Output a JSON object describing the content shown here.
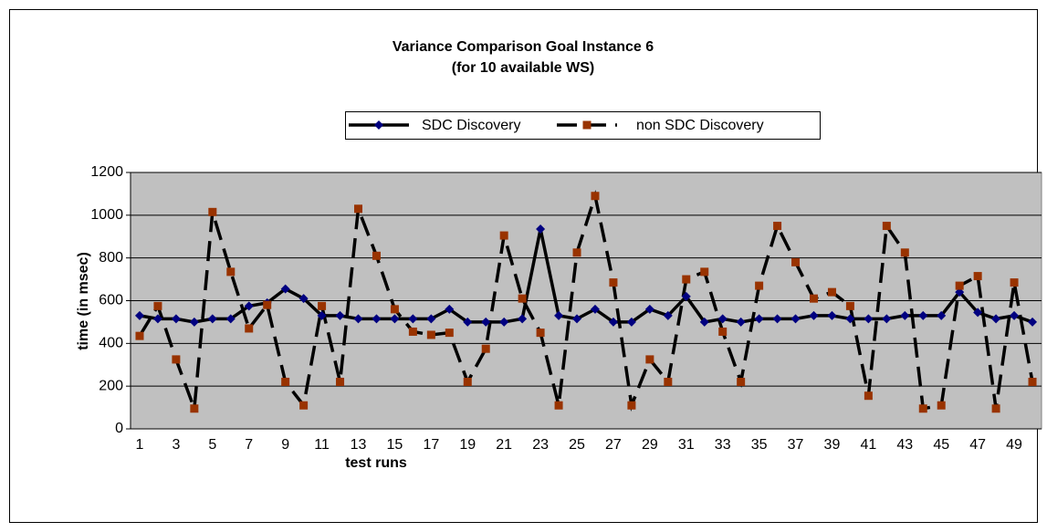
{
  "chart_data": {
    "type": "line",
    "title": "Variance Comparison Goal Instance 6",
    "subtitle": "(for 10 available WS)",
    "x_label": "test runs",
    "y_label": "time (in msec)",
    "categories": [
      "1",
      null,
      "3",
      null,
      "5",
      null,
      "7",
      null,
      "9",
      null,
      "11",
      null,
      "13",
      null,
      "15",
      null,
      "17",
      null,
      "19",
      null,
      "21",
      null,
      "23",
      null,
      "25",
      null,
      "27",
      null,
      "29",
      null,
      "31",
      null,
      "33",
      null,
      "35",
      null,
      "37",
      null,
      "39",
      null,
      "41",
      null,
      "43",
      null,
      "45",
      null,
      "47",
      null,
      "49",
      null
    ],
    "series": [
      {
        "name": "SDC Discovery",
        "color": "#000000",
        "marker_color": "#000080",
        "dash": "solid",
        "marker": "diamond",
        "values": [
          530,
          515,
          515,
          500,
          515,
          515,
          575,
          590,
          655,
          610,
          530,
          530,
          515,
          515,
          515,
          515,
          515,
          560,
          500,
          500,
          500,
          515,
          935,
          530,
          515,
          560,
          500,
          500,
          560,
          530,
          620,
          500,
          515,
          500,
          515,
          515,
          515,
          530,
          530,
          515,
          515,
          515,
          530,
          530,
          530,
          640,
          545,
          515,
          530,
          500
        ]
      },
      {
        "name": "non SDC Discovery",
        "color": "#000000",
        "marker_color": "#993300",
        "dash": "dashed",
        "marker": "square",
        "values": [
          435,
          575,
          325,
          95,
          1015,
          735,
          470,
          580,
          220,
          110,
          575,
          220,
          1030,
          810,
          560,
          455,
          440,
          450,
          220,
          375,
          905,
          610,
          450,
          110,
          825,
          1090,
          685,
          110,
          325,
          220,
          700,
          735,
          455,
          220,
          670,
          950,
          780,
          610,
          640,
          575,
          155,
          950,
          825,
          95,
          110,
          670,
          715,
          95,
          685,
          220
        ]
      }
    ],
    "ylim": [
      0,
      1200
    ],
    "yticks": [
      0,
      200,
      400,
      600,
      800,
      1000,
      1200
    ],
    "grid": true,
    "plot_background": "#c0c0c0",
    "legend": "top"
  }
}
